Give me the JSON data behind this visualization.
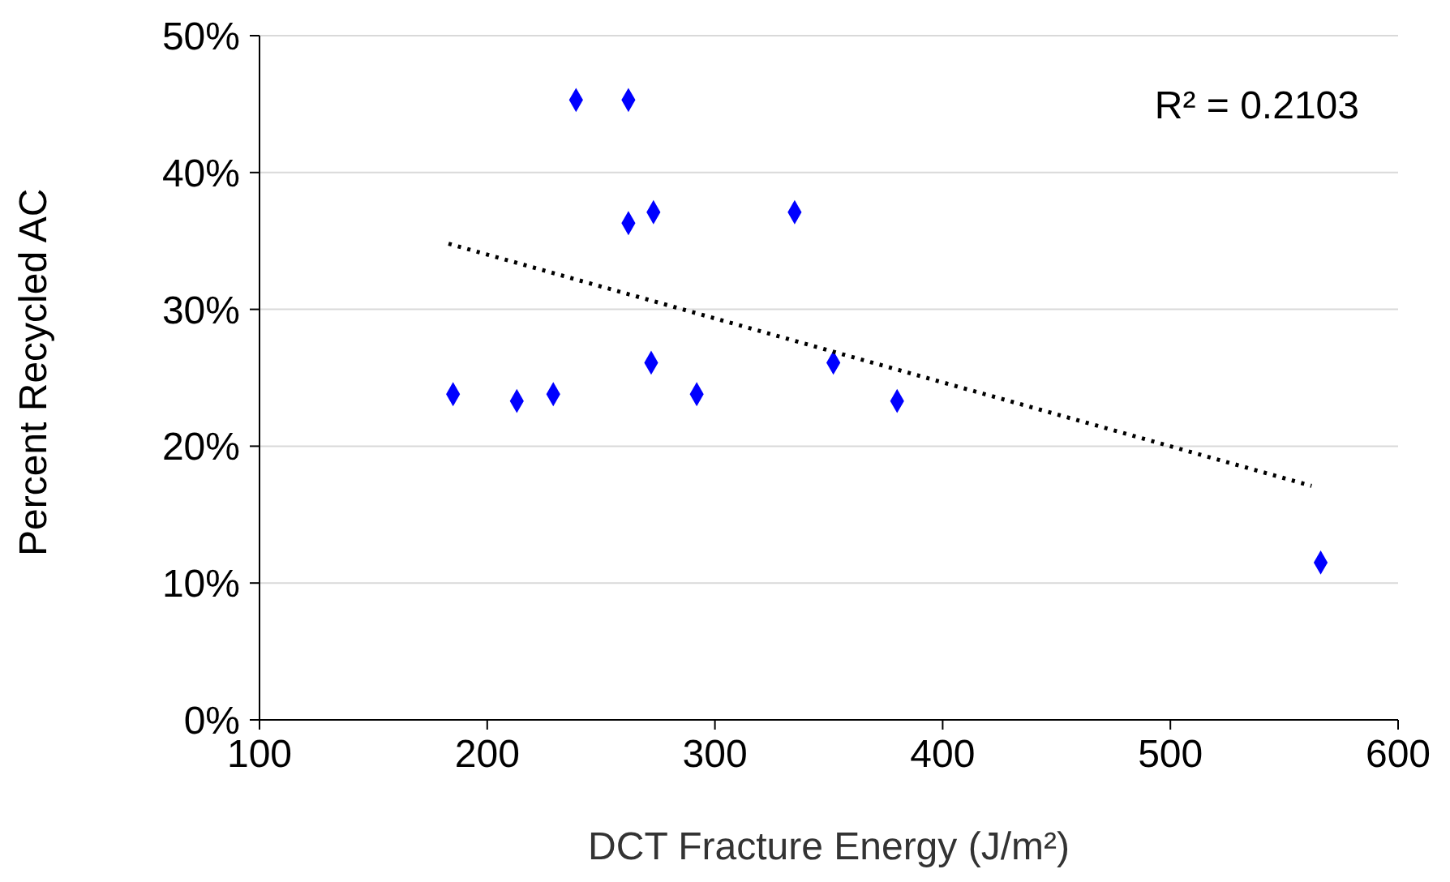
{
  "chart_data": {
    "type": "scatter",
    "xlabel": "DCT Fracture Energy (J/m²)",
    "ylabel": "Percent Recycled AC",
    "xlim": [
      100,
      600
    ],
    "xticks": [
      100,
      200,
      300,
      400,
      500,
      600
    ],
    "ylim": [
      0,
      50
    ],
    "yticks": [
      {
        "value": 0,
        "label": "0%"
      },
      {
        "value": 10,
        "label": "10%"
      },
      {
        "value": 20,
        "label": "20%"
      },
      {
        "value": 30,
        "label": "30%"
      },
      {
        "value": 40,
        "label": "40%"
      },
      {
        "value": 50,
        "label": "50%"
      }
    ],
    "grid": "y",
    "legend": false,
    "annotations": [
      "R² = 0.2103"
    ],
    "series": [
      {
        "color": "#0000ff",
        "marker": "diamond",
        "x": [
          185,
          213,
          229,
          239,
          262,
          262,
          273,
          272,
          292,
          335,
          352,
          380,
          566
        ],
        "values": [
          23.8,
          23.3,
          23.8,
          45.3,
          45.3,
          36.3,
          37.1,
          26.1,
          23.8,
          37.1,
          26.1,
          23.3,
          11.5
        ]
      },
      {
        "type": "line",
        "color": "#000000",
        "marker": "none",
        "line_style": "dotted",
        "x": [
          183,
          562
        ],
        "values": [
          34.8,
          17.1
        ]
      }
    ]
  }
}
